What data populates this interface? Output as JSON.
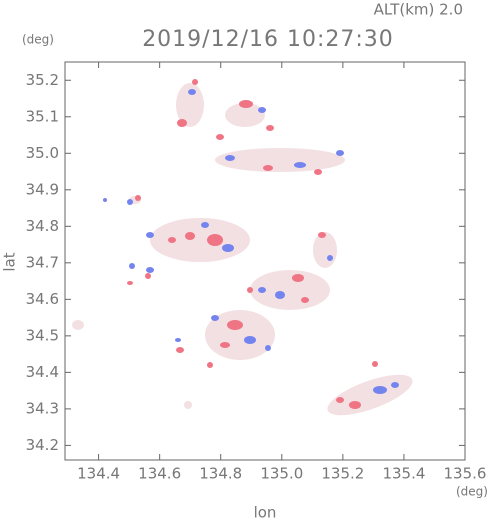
{
  "chart_data": {
    "type": "map",
    "title": "2019/12/16 10:27:30",
    "subtitle": "ALT(km) 2.0",
    "x_label": "lon",
    "y_label": "lat",
    "x_unit": "(deg)",
    "y_unit": "(deg)",
    "xlim": [
      134.29,
      135.6
    ],
    "ylim": [
      34.16,
      35.25
    ],
    "xticks": [
      134.4,
      134.6,
      134.8,
      {
        "value": 135.0,
        "label": "135.0"
      },
      135.2,
      135.4,
      135.6
    ],
    "yticks": [
      {
        "value": 34.2,
        "label": "34.2"
      },
      34.3,
      34.4,
      34.5,
      34.6,
      34.7,
      34.8,
      34.9,
      {
        "value": 35.0,
        "label": "35.0"
      },
      35.1,
      35.2
    ]
  }
}
